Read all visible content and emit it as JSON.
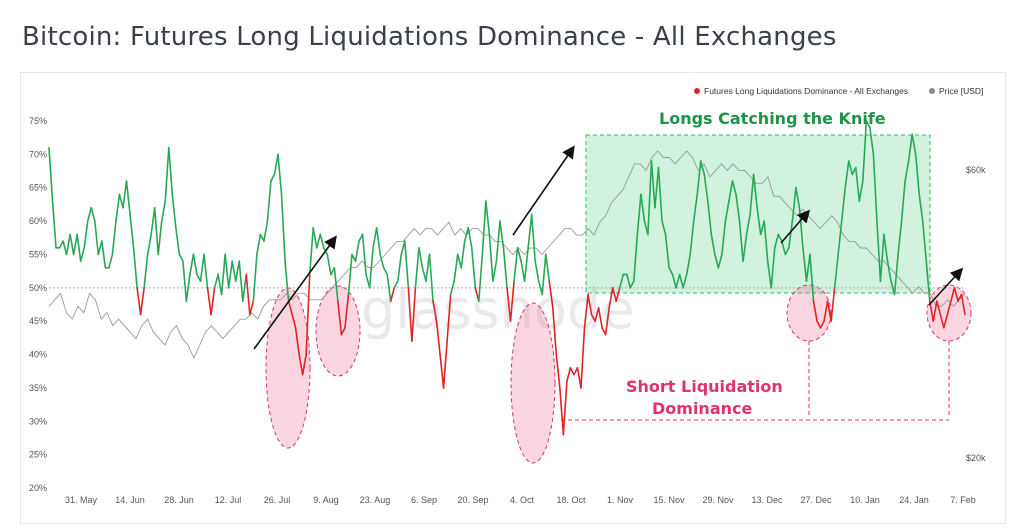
{
  "title": "Bitcoin: Futures Long Liquidations Dominance - All Exchanges",
  "watermark": "glassnode",
  "chart_data": {
    "type": "line",
    "title": "Bitcoin: Futures Long Liquidations Dominance - All Exchanges",
    "x_ticks": [
      "31. May",
      "14. Jun",
      "28. Jun",
      "12. Jul",
      "26. Jul",
      "9. Aug",
      "23. Aug",
      "6. Sep",
      "20. Sep",
      "4. Oct",
      "18. Oct",
      "1. Nov",
      "15. Nov",
      "29. Nov",
      "13. Dec",
      "27. Dec",
      "10. Jan",
      "24. Jan",
      "7. Feb"
    ],
    "y_left_ticks": [
      "20%",
      "25%",
      "30%",
      "35%",
      "40%",
      "45%",
      "50%",
      "55%",
      "60%",
      "65%",
      "70%",
      "75%"
    ],
    "y_right_ticks": [
      "$20k",
      "$60k"
    ],
    "ylim_left": [
      20,
      75
    ],
    "threshold": 50,
    "legend": [
      "Futures Long Liquidations Dominance - All Exchanges",
      "Price [USD]"
    ],
    "colors": {
      "above": "#27a857",
      "below": "#e02424",
      "price": "#9a9a9a",
      "highlight_green": "#27c268",
      "highlight_red": "#f06a93",
      "arrow": "#111111"
    },
    "series": [
      {
        "name": "Futures Long Liquidations Dominance - All Exchanges",
        "values": [
          71,
          63,
          56,
          56,
          57,
          55,
          58,
          55,
          58,
          54,
          56,
          60,
          62,
          60,
          55,
          57,
          53,
          53,
          55,
          60,
          64,
          62,
          66,
          61,
          56,
          50,
          46,
          50,
          55,
          58,
          62,
          55,
          60,
          63,
          71,
          64,
          59,
          55,
          54,
          48,
          52,
          55,
          52,
          51,
          55,
          50,
          46,
          50,
          52,
          49,
          55,
          50,
          54,
          51,
          54,
          48,
          52,
          46,
          48,
          55,
          58,
          57,
          60,
          66,
          67,
          70,
          64,
          54,
          48,
          46,
          44,
          40,
          37,
          40,
          52,
          59,
          56,
          58,
          56,
          55,
          52,
          53,
          48,
          43,
          44,
          49,
          55,
          54,
          57,
          58,
          52,
          50,
          56,
          59,
          55,
          53,
          52,
          48,
          50,
          51,
          55,
          57,
          50,
          42,
          50,
          56,
          53,
          51,
          55,
          48,
          45,
          40,
          35,
          42,
          49,
          51,
          55,
          53,
          57,
          59,
          56,
          50,
          48,
          55,
          63,
          58,
          51,
          54,
          60,
          56,
          50,
          45,
          51,
          56,
          54,
          51,
          56,
          61,
          54,
          51,
          49,
          55,
          51,
          47,
          40,
          35,
          28,
          36,
          38,
          37,
          38,
          35,
          44,
          49,
          46,
          45,
          47,
          44,
          43,
          47,
          50,
          48,
          50,
          52,
          52,
          50,
          51,
          58,
          64,
          60,
          58,
          69,
          62,
          68,
          60,
          58,
          53,
          52,
          50,
          52,
          50,
          52,
          55,
          60,
          64,
          69,
          67,
          63,
          58,
          55,
          53,
          55,
          60,
          63,
          66,
          64,
          60,
          54,
          58,
          61,
          67,
          62,
          58,
          60,
          54,
          50,
          56,
          58,
          57,
          55,
          56,
          60,
          65,
          62,
          56,
          51,
          55,
          48,
          45,
          44,
          45,
          48,
          45,
          50,
          55,
          60,
          65,
          69,
          67,
          68,
          63,
          66,
          75,
          74,
          70,
          60,
          51,
          58,
          54,
          51,
          49,
          55,
          60,
          66,
          69,
          73,
          70,
          64,
          60,
          54,
          48,
          45,
          48,
          46,
          44,
          46,
          48,
          50,
          48,
          49,
          46
        ],
        "segment_first_tick": 0
      },
      {
        "name": "Price [USD]",
        "values": [
          46,
          47,
          48,
          45,
          44,
          46,
          45,
          48,
          47,
          44,
          45,
          43,
          44,
          43,
          42,
          41,
          43,
          44,
          42,
          41,
          40,
          42,
          43,
          41,
          40,
          38,
          40,
          42,
          43,
          42,
          41,
          42,
          43,
          44,
          44,
          45,
          44,
          46,
          47,
          47,
          47,
          48,
          47,
          48,
          48,
          47,
          47,
          47,
          48,
          49,
          50,
          51,
          52,
          52,
          53,
          52,
          52,
          53,
          54,
          55,
          56,
          56,
          57,
          58,
          57,
          58,
          58,
          57,
          58,
          59,
          57,
          58,
          57,
          58,
          58,
          57,
          57,
          56,
          56,
          55,
          54,
          55,
          54,
          55,
          55,
          54,
          55,
          56,
          57,
          58,
          58,
          57,
          57,
          58,
          57,
          59,
          60,
          62,
          63,
          64,
          66,
          68,
          68,
          67,
          69,
          70,
          69,
          69,
          68,
          69,
          70,
          69,
          67,
          68,
          66,
          67,
          68,
          67,
          68,
          67,
          67,
          66,
          65,
          65,
          66,
          63,
          63,
          62,
          61,
          60,
          61,
          60,
          59,
          58,
          59,
          60,
          59,
          57,
          56,
          56,
          55,
          55,
          54,
          53,
          53,
          52,
          51,
          50,
          49,
          48,
          49,
          48,
          48,
          46,
          46,
          47,
          46,
          47,
          48
        ]
      }
    ],
    "annotations": [
      "Longs Catching the Knife",
      "Short Liquidation",
      "Dominance"
    ]
  }
}
